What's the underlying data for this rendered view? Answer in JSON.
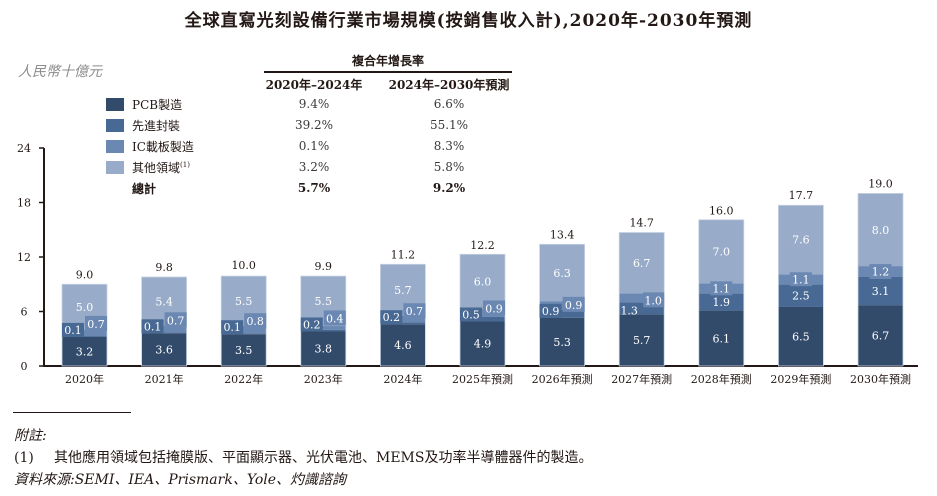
{
  "title": "全球直寫光刻設備行業市場規模(按銷售收入計),2020年-2030年預測",
  "unit_label": "人民幣十億元",
  "cagr_table": {
    "header": "複合年增長率",
    "columns": [
      "2020年–2024年",
      "2024年–2030年預測"
    ],
    "rows": [
      {
        "label": "PCB製造",
        "values": [
          "9.4%",
          "6.6%"
        ]
      },
      {
        "label": "先進封裝",
        "values": [
          "39.2%",
          "55.1%"
        ]
      },
      {
        "label": "IC載板製造",
        "values": [
          "0.1%",
          "8.3%"
        ]
      },
      {
        "label": "其他領域",
        "superscript": "(1)",
        "values": [
          "3.2%",
          "5.8%"
        ]
      },
      {
        "label": "總計",
        "values": [
          "5.7%",
          "9.2%"
        ],
        "bold": true
      }
    ]
  },
  "chart_data": {
    "type": "bar",
    "stacked": true,
    "title": "全球直寫光刻設備行業市場規模(按銷售收入計),2020年-2030年預測",
    "ylabel": "人民幣十億元",
    "xlabel": "",
    "ylim": [
      0,
      24
    ],
    "yticks": [
      0,
      6,
      12,
      18,
      24
    ],
    "grid": false,
    "legend_position": "top-left",
    "categories": [
      "2020年",
      "2021年",
      "2022年",
      "2023年",
      "2024年",
      "2025年預測",
      "2026年預測",
      "2027年預測",
      "2028年預測",
      "2029年預測",
      "2030年預測"
    ],
    "series": [
      {
        "name": "PCB製造",
        "color": "#334b6b",
        "values": [
          3.2,
          3.6,
          3.5,
          3.8,
          4.6,
          4.9,
          5.3,
          5.7,
          6.1,
          6.5,
          6.7
        ]
      },
      {
        "name": "先進封裝",
        "color": "#486993",
        "values": [
          0.1,
          0.1,
          0.1,
          0.2,
          0.2,
          0.5,
          0.9,
          1.3,
          1.9,
          2.5,
          3.1
        ]
      },
      {
        "name": "IC載板製造",
        "color": "#6b88b2",
        "values": [
          0.7,
          0.7,
          0.8,
          0.4,
          0.7,
          0.9,
          0.9,
          1.0,
          1.1,
          1.1,
          1.2
        ]
      },
      {
        "name": "其他領域",
        "color": "#98abc8",
        "values": [
          5.0,
          5.4,
          5.5,
          5.5,
          5.7,
          6.0,
          6.3,
          6.7,
          7.0,
          7.6,
          8.0
        ]
      }
    ],
    "totals": [
      9.0,
      9.8,
      10.0,
      9.9,
      11.2,
      12.2,
      13.4,
      14.7,
      16.0,
      17.7,
      19.0
    ]
  },
  "footnotes": {
    "heading": "附註:",
    "notes": [
      {
        "number": "(1)",
        "text": "其他應用領域包括掩膜版、平面顯示器、光伏電池、MEMS及功率半導體器件的製造。"
      }
    ],
    "source": "資料來源:SEMI、IEA、Prismark、Yole、灼識諮詢"
  }
}
